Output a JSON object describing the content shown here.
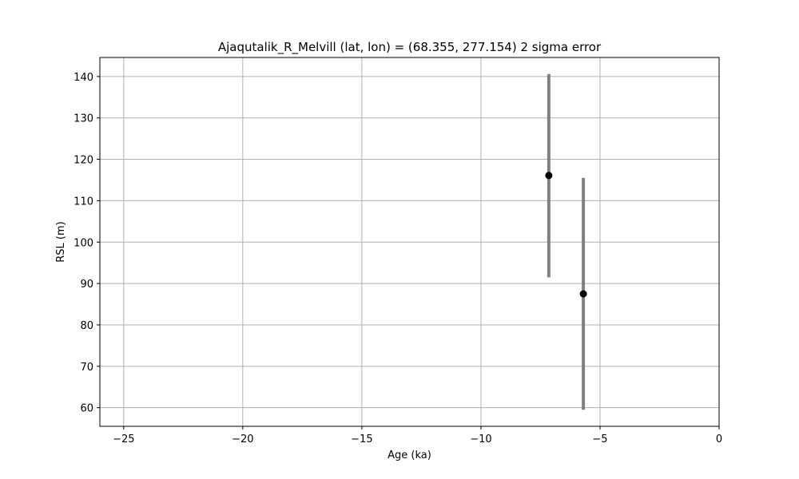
{
  "chart_data": {
    "type": "scatter",
    "title": "Ajaqutalik_R_Melvill (lat, lon) = (68.355, 277.154)  2 sigma error",
    "xlabel": "Age (ka)",
    "ylabel": "RSL (m)",
    "xlim": [
      -26,
      0
    ],
    "ylim": [
      55.5,
      144.6
    ],
    "xticks": [
      -25,
      -20,
      -15,
      -10,
      -5,
      0
    ],
    "xtick_labels": [
      "−25",
      "−20",
      "−15",
      "−10",
      "−5",
      "0"
    ],
    "yticks": [
      60,
      70,
      80,
      90,
      100,
      110,
      120,
      130,
      140
    ],
    "ytick_labels": [
      "60",
      "70",
      "80",
      "90",
      "100",
      "110",
      "120",
      "130",
      "140"
    ],
    "grid": true,
    "marker_color": "#000000",
    "errorbar_color": "#808080",
    "points": [
      {
        "x": -7.15,
        "y": 116.1,
        "y_low": 91.5,
        "y_high": 140.6
      },
      {
        "x": -5.7,
        "y": 87.5,
        "y_low": 59.5,
        "y_high": 115.5
      }
    ]
  }
}
